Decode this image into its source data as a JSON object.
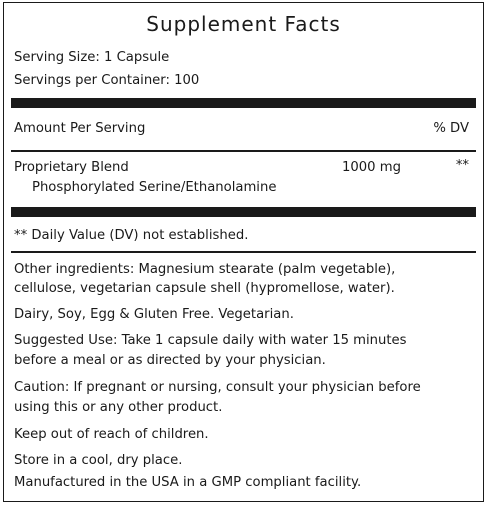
{
  "title": "Supplement Facts",
  "serving_size": "Serving Size: 1 Capsule",
  "servings_per_container": "Servings per Container: 100",
  "amount_header": "Amount Per Serving",
  "dv_header": "% DV",
  "blend": {
    "name": "Proprietary Blend",
    "amount": "1000 mg",
    "dv": "**",
    "ingredient": "Phosphorylated Serine/Ethanolamine"
  },
  "dv_note": "** Daily Value (DV) not established.",
  "other_ingredients": [
    "Other ingredients: Magnesium stearate (palm vegetable),",
    "cellulose, vegetarian capsule shell (hypromellose, water)."
  ],
  "allergen": "Dairy, Soy, Egg & Gluten Free. Vegetarian.",
  "suggested_use": [
    "Suggested Use: Take 1 capsule daily with water 15 minutes",
    "before a meal or as directed by your physician."
  ],
  "caution": [
    "Caution: If pregnant or nursing, consult your physician before",
    "using this or any other product."
  ],
  "keep_out": "Keep out of reach of children.",
  "storage": "Store in a cool, dry place.",
  "manufactured": "Manufactured in the USA in a GMP compliant facility."
}
